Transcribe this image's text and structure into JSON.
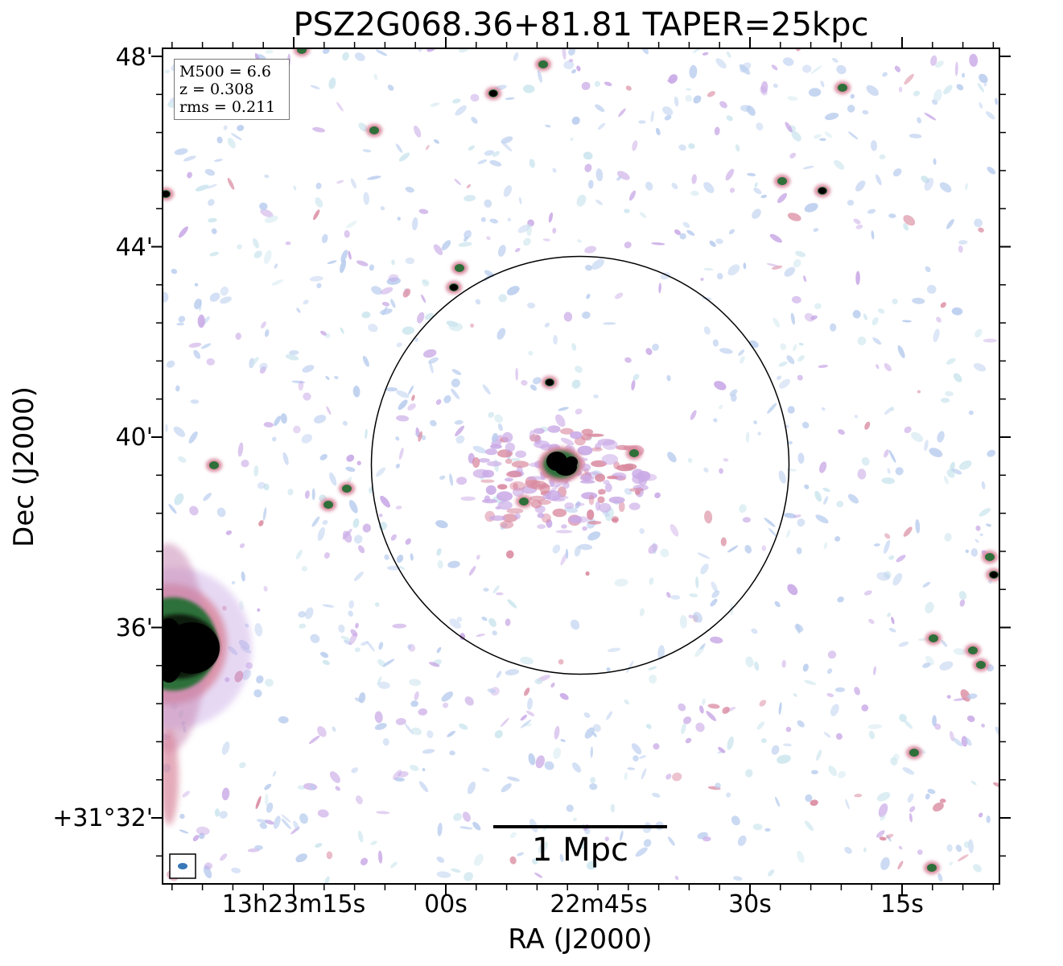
{
  "title": "PSZ2G068.36+81.81 TAPER=25kpc",
  "axes": {
    "xlabel": "RA (J2000)",
    "ylabel": "Dec (J2000)",
    "xticks": [
      "13h23m15s",
      "00s",
      "22m45s",
      "30s",
      "15s"
    ],
    "yticks": [
      "48'",
      "44'",
      "40'",
      "36'",
      "+31°32'"
    ]
  },
  "info": {
    "mass": "M500 = 6.6",
    "redshift": "z = 0.308",
    "rms": "rms = 0.211"
  },
  "scalebar": {
    "label": "1 Mpc"
  },
  "colors": {
    "faint_emission": "#b9cdee",
    "cyan_emission": "#cde6ee",
    "medium_emission": "#c9a9e6",
    "bright_emission": "#d9889e",
    "peak_emission": "#2f6f3a",
    "core": "#000000",
    "beam": "#3a78b8"
  }
}
